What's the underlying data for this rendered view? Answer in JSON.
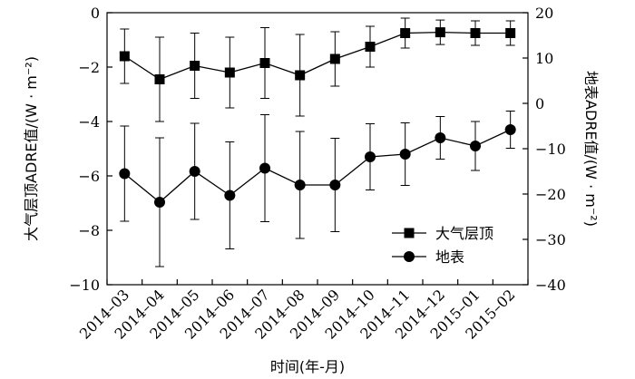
{
  "chart_data": {
    "type": "line",
    "categories": [
      "2014-03",
      "2014-04",
      "2014-05",
      "2014-06",
      "2014-07",
      "2014-08",
      "2014-09",
      "2014-10",
      "2014-11",
      "2014-12",
      "2015-01",
      "2015-02"
    ],
    "xlabel": "时间(年-月)",
    "ylabel_left": "大气层顶ADRE值/(W · m⁻²)",
    "ylabel_right": "地表ADRE值/(W · m⁻²)",
    "ylim_left": [
      -10,
      0
    ],
    "yticks_left": [
      0,
      -2,
      -4,
      -6,
      -8,
      -10
    ],
    "ylim_right": [
      -40,
      20
    ],
    "yticks_right": [
      20,
      10,
      0,
      -10,
      -20,
      -30,
      -40
    ],
    "grid": false,
    "legend_position": "lower-right",
    "series": [
      {
        "name": "大气层顶",
        "axis": "left",
        "marker": "square",
        "values": [
          -1.6,
          -2.45,
          -1.95,
          -2.2,
          -1.85,
          -2.3,
          -1.7,
          -1.25,
          -0.75,
          -0.72,
          -0.75,
          -0.75
        ],
        "error": [
          1.0,
          1.55,
          1.2,
          1.3,
          1.3,
          1.5,
          1.0,
          0.75,
          0.55,
          0.45,
          0.45,
          0.45
        ]
      },
      {
        "name": "地表",
        "axis": "right",
        "marker": "circle",
        "values": [
          -15.5,
          -21.8,
          -15.0,
          -20.3,
          -14.3,
          -18.0,
          -18.0,
          -11.8,
          -11.2,
          -7.6,
          -9.4,
          -5.8
        ],
        "error": [
          10.5,
          14.2,
          10.6,
          11.8,
          11.8,
          11.8,
          10.3,
          7.3,
          6.9,
          4.7,
          5.4,
          4.1
        ]
      }
    ]
  }
}
